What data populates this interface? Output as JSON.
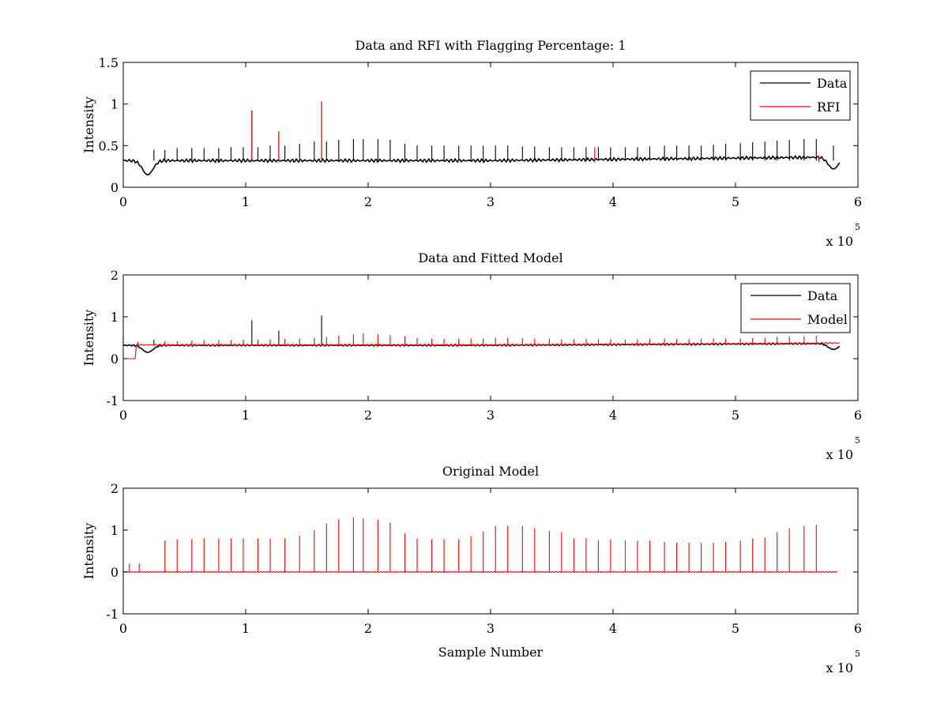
{
  "figure": {
    "background": "#ffffff"
  },
  "chart_data": [
    {
      "type": "line",
      "title": "Data and RFI with Flagging Percentage: 1",
      "xlabel": "",
      "ylabel": "Intensity",
      "xlim": [
        0,
        6
      ],
      "ylim": [
        0,
        1.5
      ],
      "xticks": [
        "0",
        "1",
        "2",
        "3",
        "4",
        "5",
        "6"
      ],
      "yticks": [
        "0",
        "0.5",
        "1",
        "1.5"
      ],
      "x_multiplier": {
        "base": "x 10",
        "exponent": "5"
      },
      "legend": {
        "placement": "top-right",
        "entries": [
          "Data",
          "RFI"
        ]
      },
      "grid": false,
      "series": [
        {
          "name": "Data",
          "color": "#000000",
          "baseline": 0.32,
          "dips": [
            {
              "x": 0.2,
              "y": 0.15
            },
            {
              "x": 5.8,
              "y": 0.22
            }
          ],
          "spike_x": [
            0.0,
            0.25,
            0.34,
            0.44,
            0.56,
            0.66,
            0.78,
            0.88,
            0.98,
            1.05,
            1.1,
            1.2,
            1.27,
            1.32,
            1.44,
            1.56,
            1.62,
            1.66,
            1.76,
            1.88,
            1.96,
            2.08,
            2.18,
            2.3,
            2.4,
            2.52,
            2.62,
            2.74,
            2.84,
            2.94,
            3.04,
            3.14,
            3.26,
            3.36,
            3.48,
            3.58,
            3.68,
            3.78,
            3.88,
            3.98,
            4.1,
            4.2,
            4.3,
            4.42,
            4.52,
            4.62,
            4.72,
            4.82,
            4.92,
            5.04,
            5.14,
            5.24,
            5.34,
            5.44,
            5.56,
            5.66,
            5.8
          ],
          "spike_y": [
            0.55,
            0.45,
            0.45,
            0.47,
            0.47,
            0.47,
            0.47,
            0.48,
            0.48,
            0.92,
            0.48,
            0.5,
            0.67,
            0.5,
            0.52,
            0.55,
            1.03,
            0.55,
            0.57,
            0.58,
            0.58,
            0.58,
            0.57,
            0.52,
            0.5,
            0.5,
            0.5,
            0.5,
            0.5,
            0.5,
            0.5,
            0.5,
            0.49,
            0.49,
            0.48,
            0.48,
            0.48,
            0.48,
            0.48,
            0.48,
            0.48,
            0.48,
            0.49,
            0.5,
            0.5,
            0.5,
            0.5,
            0.51,
            0.52,
            0.53,
            0.54,
            0.55,
            0.56,
            0.57,
            0.58,
            0.58,
            0.5
          ]
        },
        {
          "name": "RFI",
          "color": "#ff0000",
          "spike_x": [
            1.05,
            1.27,
            1.62,
            3.85,
            5.68
          ],
          "spike_y": [
            0.92,
            0.67,
            1.03,
            0.48,
            0.38
          ]
        }
      ]
    },
    {
      "type": "line",
      "title": "Data and Fitted Model",
      "xlabel": "",
      "ylabel": "Intensity",
      "xlim": [
        0,
        6
      ],
      "ylim": [
        -1,
        2
      ],
      "xticks": [
        "0",
        "1",
        "2",
        "3",
        "4",
        "5",
        "6"
      ],
      "yticks": [
        "-1",
        "0",
        "1",
        "2"
      ],
      "x_multiplier": {
        "base": "x 10",
        "exponent": "5"
      },
      "legend": {
        "placement": "top-right",
        "entries": [
          "Data",
          "Model"
        ]
      },
      "grid": false,
      "series": [
        {
          "name": "Data",
          "color": "#000000",
          "baseline": 0.32,
          "dips": [
            {
              "x": 0.2,
              "y": 0.15
            },
            {
              "x": 5.8,
              "y": 0.22
            }
          ],
          "spike_x": [
            0.0,
            0.25,
            1.05,
            1.27,
            1.62
          ],
          "spike_y": [
            0.55,
            0.45,
            0.92,
            0.67,
            1.03
          ]
        },
        {
          "name": "Model",
          "color": "#ff0000",
          "baseline": 0.33,
          "offset_until": 0.1,
          "offset_value": 0.0,
          "spike_x": [
            0.12,
            0.34,
            0.44,
            0.56,
            0.66,
            0.78,
            0.88,
            0.98,
            1.1,
            1.2,
            1.32,
            1.44,
            1.56,
            1.66,
            1.76,
            1.88,
            1.96,
            2.08,
            2.18,
            2.3,
            2.4,
            2.52,
            2.62,
            2.74,
            2.84,
            2.94,
            3.04,
            3.14,
            3.26,
            3.36,
            3.48,
            3.58,
            3.68,
            3.78,
            3.88,
            3.98,
            4.1,
            4.2,
            4.3,
            4.42,
            4.52,
            4.62,
            4.72,
            4.82,
            4.92,
            5.04,
            5.14,
            5.24,
            5.34,
            5.44,
            5.56,
            5.66
          ],
          "spike_y": [
            0.4,
            0.42,
            0.42,
            0.43,
            0.44,
            0.44,
            0.44,
            0.45,
            0.45,
            0.46,
            0.47,
            0.48,
            0.5,
            0.52,
            0.55,
            0.58,
            0.6,
            0.58,
            0.56,
            0.54,
            0.5,
            0.48,
            0.47,
            0.48,
            0.48,
            0.48,
            0.5,
            0.5,
            0.49,
            0.48,
            0.48,
            0.46,
            0.46,
            0.47,
            0.47,
            0.46,
            0.46,
            0.46,
            0.47,
            0.48,
            0.47,
            0.47,
            0.48,
            0.48,
            0.48,
            0.48,
            0.49,
            0.5,
            0.52,
            0.53,
            0.54,
            0.55
          ]
        }
      ]
    },
    {
      "type": "line",
      "title": "Original Model",
      "xlabel": "Sample Number",
      "ylabel": "Intensity",
      "xlim": [
        0,
        6
      ],
      "ylim": [
        -1,
        2
      ],
      "xticks": [
        "0",
        "1",
        "2",
        "3",
        "4",
        "5",
        "6"
      ],
      "yticks": [
        "-1",
        "0",
        "1",
        "2"
      ],
      "x_multiplier": {
        "base": "x 10",
        "exponent": "5"
      },
      "legend": null,
      "grid": false,
      "series": [
        {
          "name": "",
          "color": "#ff0000",
          "baseline": 0.0,
          "x_end": 5.83,
          "spike_x": [
            0.05,
            0.13,
            0.34,
            0.44,
            0.56,
            0.66,
            0.78,
            0.88,
            0.98,
            1.1,
            1.2,
            1.32,
            1.44,
            1.56,
            1.66,
            1.76,
            1.88,
            1.96,
            2.08,
            2.18,
            2.3,
            2.4,
            2.52,
            2.62,
            2.74,
            2.84,
            2.94,
            3.04,
            3.14,
            3.26,
            3.36,
            3.48,
            3.58,
            3.68,
            3.78,
            3.88,
            3.98,
            4.1,
            4.2,
            4.3,
            4.42,
            4.52,
            4.62,
            4.72,
            4.82,
            4.92,
            5.04,
            5.14,
            5.24,
            5.34,
            5.44,
            5.56,
            5.66
          ],
          "spike_y": [
            0.2,
            0.2,
            0.75,
            0.78,
            0.78,
            0.8,
            0.8,
            0.8,
            0.8,
            0.8,
            0.8,
            0.8,
            0.87,
            1.0,
            1.15,
            1.25,
            1.3,
            1.28,
            1.25,
            1.18,
            0.92,
            0.8,
            0.78,
            0.78,
            0.78,
            0.85,
            0.97,
            1.1,
            1.1,
            1.1,
            1.05,
            0.98,
            0.95,
            0.8,
            0.8,
            0.75,
            0.78,
            0.75,
            0.75,
            0.75,
            0.72,
            0.7,
            0.7,
            0.7,
            0.7,
            0.72,
            0.75,
            0.8,
            0.82,
            0.95,
            1.05,
            1.1,
            1.12
          ]
        }
      ]
    }
  ]
}
